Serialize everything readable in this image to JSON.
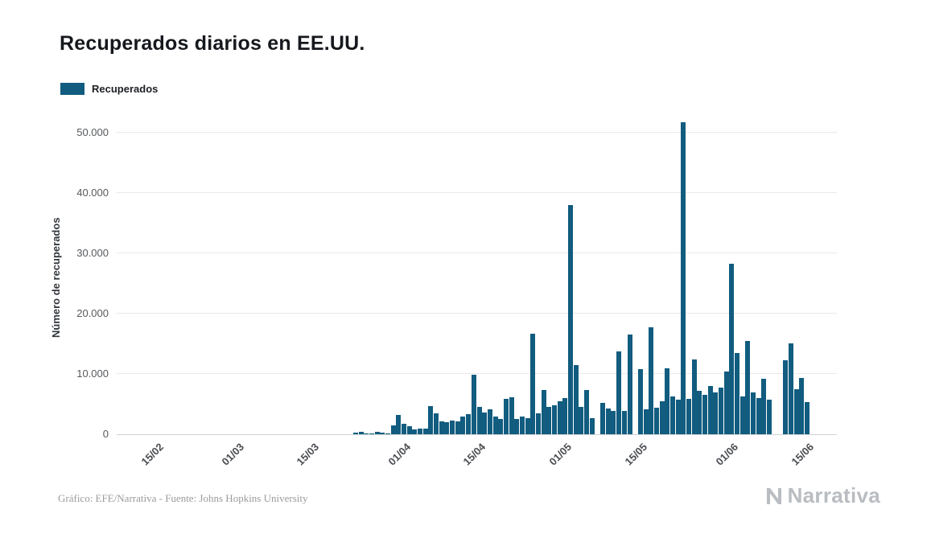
{
  "title": "Recuperados diarios en EE.UU.",
  "legend": {
    "label": "Recuperados"
  },
  "colors": {
    "bar": "#115c7f",
    "grid": "#e9e9e9",
    "axis_text": "#55585c",
    "brand": "#b9bdc1"
  },
  "footer": {
    "credit": "Gráfico: EFE/Narrativa - Fuente: Johns Hopkins University",
    "brand": "Narrativa"
  },
  "chart_data": {
    "type": "bar",
    "title": "Recuperados diarios en EE.UU.",
    "series_name": "Recuperados",
    "xlabel": "",
    "ylabel": "Número de recuperados",
    "ylim": [
      0,
      52000
    ],
    "yticks": [
      0,
      10000,
      20000,
      30000,
      40000,
      50000
    ],
    "ytick_labels": [
      "0",
      "10.000",
      "20.000",
      "30.000",
      "40.000",
      "50.000"
    ],
    "xtick_labels": [
      "15/02",
      "01/03",
      "15/03",
      "01/04",
      "15/04",
      "01/05",
      "15/05",
      "01/06",
      "15/06"
    ],
    "grid": "horizontal",
    "legend_position": "top-left",
    "dates": [
      "08/02",
      "09/02",
      "10/02",
      "11/02",
      "12/02",
      "13/02",
      "14/02",
      "15/02",
      "16/02",
      "17/02",
      "18/02",
      "19/02",
      "20/02",
      "21/02",
      "22/02",
      "23/02",
      "24/02",
      "25/02",
      "26/02",
      "27/02",
      "28/02",
      "29/02",
      "01/03",
      "02/03",
      "03/03",
      "04/03",
      "05/03",
      "06/03",
      "07/03",
      "08/03",
      "09/03",
      "10/03",
      "11/03",
      "12/03",
      "13/03",
      "14/03",
      "15/03",
      "16/03",
      "17/03",
      "18/03",
      "19/03",
      "20/03",
      "21/03",
      "22/03",
      "23/03",
      "24/03",
      "25/03",
      "26/03",
      "27/03",
      "28/03",
      "29/03",
      "30/03",
      "31/03",
      "01/04",
      "02/04",
      "03/04",
      "04/04",
      "05/04",
      "06/04",
      "07/04",
      "08/04",
      "09/04",
      "10/04",
      "11/04",
      "12/04",
      "13/04",
      "14/04",
      "15/04",
      "16/04",
      "17/04",
      "18/04",
      "19/04",
      "20/04",
      "21/04",
      "22/04",
      "23/04",
      "24/04",
      "25/04",
      "26/04",
      "27/04",
      "28/04",
      "29/04",
      "30/04",
      "01/05",
      "02/05",
      "03/05",
      "04/05",
      "05/05",
      "06/05",
      "07/05",
      "08/05",
      "09/05",
      "10/05",
      "11/05",
      "12/05",
      "13/05",
      "14/05",
      "15/05",
      "16/05",
      "17/05",
      "18/05",
      "19/05",
      "20/05",
      "21/05",
      "22/05",
      "23/05",
      "24/05",
      "25/05",
      "26/05",
      "27/05",
      "28/05",
      "29/05",
      "30/05",
      "31/05",
      "01/06",
      "02/06",
      "03/06",
      "04/06",
      "05/06",
      "06/06",
      "07/06",
      "08/06",
      "09/06",
      "10/06",
      "11/06",
      "12/06",
      "13/06",
      "14/06",
      "15/06",
      "16/06",
      "17/06",
      "18/06",
      "19/06",
      "20/06"
    ],
    "values": [
      0,
      0,
      0,
      0,
      0,
      0,
      0,
      0,
      0,
      0,
      0,
      0,
      0,
      0,
      0,
      0,
      0,
      0,
      0,
      0,
      0,
      0,
      0,
      0,
      0,
      0,
      0,
      0,
      0,
      0,
      0,
      0,
      0,
      0,
      0,
      0,
      0,
      0,
      0,
      0,
      0,
      0,
      0,
      0,
      300,
      400,
      100,
      150,
      400,
      250,
      150,
      1500,
      3200,
      1800,
      1400,
      750,
      1000,
      950,
      4700,
      3500,
      2200,
      2000,
      2300,
      2200,
      2900,
      3300,
      9900,
      4500,
      3600,
      4100,
      3000,
      2500,
      5900,
      6100,
      2500,
      2900,
      2700,
      16700,
      3500,
      7400,
      4500,
      4800,
      5500,
      6000,
      38000,
      11500,
      4500,
      7300,
      2700,
      0,
      5200,
      4300,
      3900,
      13700,
      3900,
      16500,
      0,
      10800,
      4100,
      17700,
      4400,
      5500,
      11000,
      6300,
      5700,
      51800,
      5900,
      12400,
      7200,
      6600,
      8000,
      7000,
      7800,
      10400,
      28300,
      13500,
      6300,
      15500,
      6900,
      6000,
      9200,
      5700,
      0,
      0,
      12300,
      15100,
      7500,
      9400,
      5300,
      0,
      0,
      0,
      0,
      0
    ]
  }
}
